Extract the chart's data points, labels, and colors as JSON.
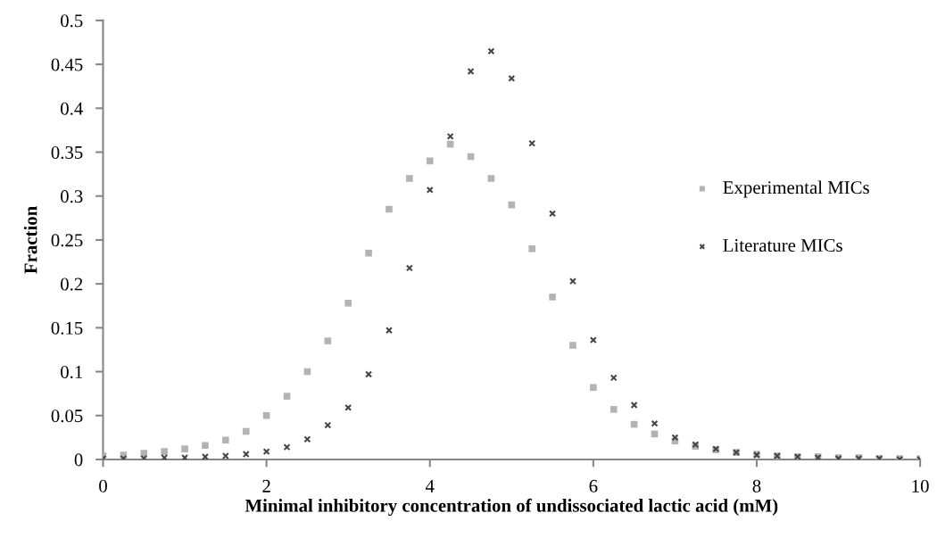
{
  "chart_data": {
    "type": "scatter",
    "xlabel": "Minimal inhibitory concentration of undissociated lactic acid (mM)",
    "ylabel": "Fraction",
    "x": [
      0,
      0.25,
      0.5,
      0.75,
      1,
      1.25,
      1.5,
      1.75,
      2,
      2.25,
      2.5,
      2.75,
      3,
      3.25,
      3.5,
      3.75,
      4,
      4.25,
      4.5,
      4.75,
      5,
      5.25,
      5.5,
      5.75,
      6,
      6.25,
      6.5,
      6.75,
      7,
      7.25,
      7.5,
      7.75,
      8,
      8.25,
      8.5,
      8.75,
      9,
      9.25,
      9.5,
      9.75,
      10
    ],
    "series": [
      {
        "name": "Experimental MICs",
        "color": "#b3b3b3",
        "marker": "square",
        "values": [
          0.004,
          0.005,
          0.007,
          0.009,
          0.012,
          0.016,
          0.022,
          0.032,
          0.05,
          0.072,
          0.1,
          0.135,
          0.178,
          0.235,
          0.285,
          0.32,
          0.34,
          0.359,
          0.345,
          0.32,
          0.29,
          0.24,
          0.185,
          0.13,
          0.082,
          0.057,
          0.04,
          0.029,
          0.021,
          0.015,
          0.011,
          0.008,
          0.006,
          0.004,
          0.003,
          0.003,
          0.002,
          0.002,
          0.001,
          0.001,
          0.001
        ]
      },
      {
        "name": "Literature MICs",
        "color": "#454545",
        "marker": "cross",
        "values": [
          0.001,
          0.001,
          0.001,
          0.002,
          0.002,
          0.003,
          0.004,
          0.006,
          0.009,
          0.014,
          0.023,
          0.039,
          0.059,
          0.097,
          0.147,
          0.218,
          0.307,
          0.368,
          0.442,
          0.465,
          0.434,
          0.36,
          0.28,
          0.203,
          0.136,
          0.093,
          0.062,
          0.041,
          0.025,
          0.017,
          0.012,
          0.008,
          0.005,
          0.004,
          0.003,
          0.002,
          0.001,
          0.001,
          0.001,
          0.0,
          0.0
        ]
      }
    ],
    "xlim": [
      0,
      10
    ],
    "xticks": [
      0,
      2,
      4,
      6,
      8,
      10
    ],
    "ylim": [
      0,
      0.5
    ],
    "yticks": [
      0,
      0.05,
      0.1,
      0.15,
      0.2,
      0.25,
      0.3,
      0.35,
      0.4,
      0.45,
      0.5
    ],
    "grid": false,
    "legend": "right"
  }
}
